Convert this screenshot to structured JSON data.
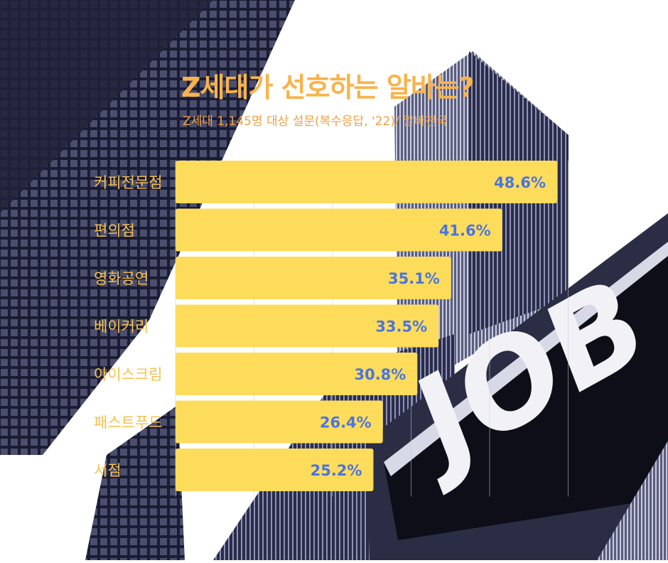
{
  "title": "Z세대가 선호하는 알바는?",
  "subtitle": "Z세대 1,145명 대상 설문(복수응답, '22)/ 알바천국",
  "colors": {
    "bar": "#fedc5b",
    "value_text": "#4a74e0",
    "category_text": "#f6c14e",
    "title": "#f7b34d",
    "subtitle": "#f0a044"
  },
  "background": {
    "signage_text": "JOB"
  },
  "chart_data": {
    "type": "bar",
    "orientation": "horizontal",
    "title": "Z세대가 선호하는 알바는?",
    "subtitle": "Z세대 1,145명 대상 설문(복수응답, '22)/ 알바천국",
    "categories": [
      "커피전문점",
      "편의점",
      "영화공연",
      "베이커리",
      "아이스크림",
      "패스트푸드",
      "서점"
    ],
    "values": [
      48.6,
      41.6,
      35.1,
      33.5,
      30.8,
      26.4,
      25.2
    ],
    "value_labels": [
      "48.6%",
      "41.6%",
      "35.1%",
      "33.5%",
      "30.8%",
      "26.4%",
      "25.2%"
    ],
    "unit": "%",
    "xlim": [
      0,
      50
    ],
    "grid": true,
    "legend": "none"
  }
}
